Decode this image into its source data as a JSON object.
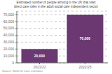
{
  "chart_data": {
    "type": "bar",
    "title": "Estimated number of people arriving in the UK that start\ndirect care roles in the adult social care independent sector",
    "categories": [
      "2021/22",
      "2022/23"
    ],
    "values": [
      20000,
      70000
    ],
    "value_labels": [
      "20,000",
      "70,000"
    ],
    "data_labels": true,
    "color": "#6b3872",
    "ylim": [
      0,
      75000
    ],
    "yticks": [
      0,
      {
        "value": 10000,
        "label": "10,000"
      },
      {
        "value": 20000,
        "label": "20,000"
      },
      {
        "value": 30000,
        "label": "30,000"
      },
      {
        "value": 40000,
        "label": "40,000"
      },
      {
        "value": 50000,
        "label": "50,000"
      },
      {
        "value": 60000,
        "label": "60,000"
      },
      {
        "value": 70000,
        "label": "70,000"
      }
    ],
    "grid": true,
    "annotations": [
      "Source: Skills for Care estimates"
    ]
  }
}
